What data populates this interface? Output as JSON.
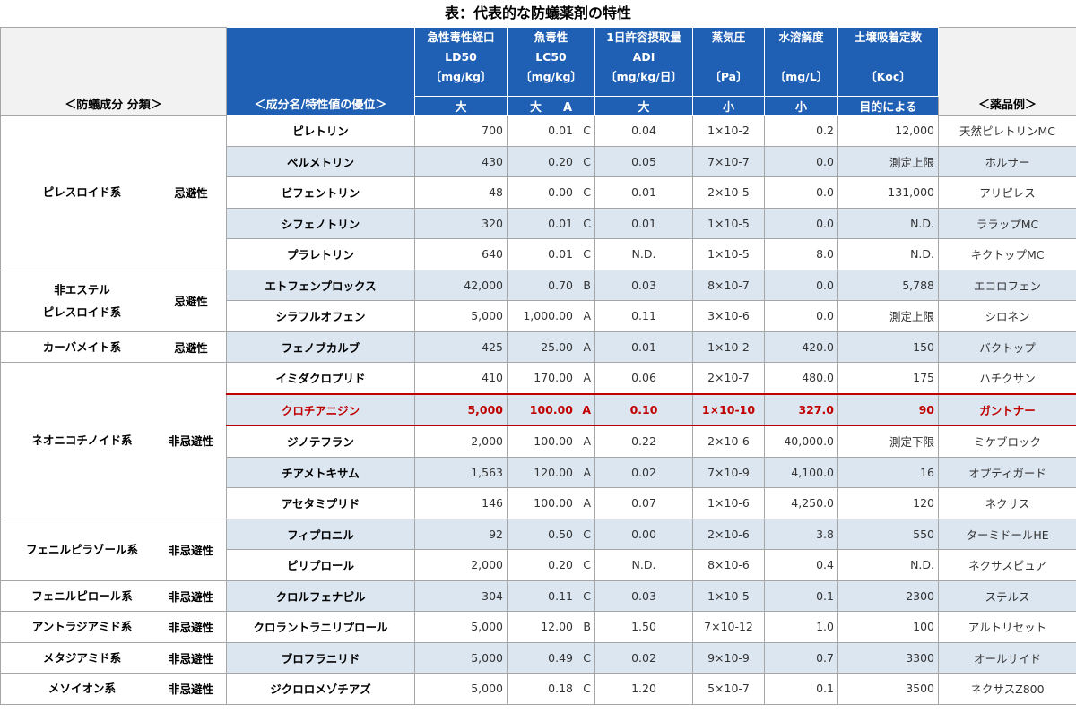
{
  "title": "表：代表的な防蟻薬剤の特性",
  "header": {
    "group_label": "＜防蟻成分 分類＞",
    "name_label": "＜成分名/特性値の優位＞",
    "example_label": "＜薬品例＞",
    "cols": [
      {
        "l1": "急性毒性経口",
        "l2": "LD50",
        "l3": "〔mg/kg〕",
        "pref": "大"
      },
      {
        "l1": "魚毒性",
        "l2": "LC50",
        "l3": "〔mg/kg〕",
        "pref": "大",
        "pref2": "A"
      },
      {
        "l1": "1日許容摂取量",
        "l2": "ADI",
        "l3": "〔mg/kg/日〕",
        "pref": "大"
      },
      {
        "l1": "蒸気圧",
        "l2": "",
        "l3": "〔Pa〕",
        "pref": "小"
      },
      {
        "l1": "水溶解度",
        "l2": "",
        "l3": "〔mg/L〕",
        "pref": "小"
      },
      {
        "l1": "土壌吸着定数",
        "l2": "",
        "l3": "〔Koc〕",
        "pref": "目的による"
      }
    ]
  },
  "groups": [
    {
      "name": "ピレスロイド系",
      "cls": "忌避性",
      "rows": [
        {
          "name": "ピレトリン",
          "ld50": "700",
          "lc50": "0.01",
          "lc50_rank": "C",
          "adi": "0.04",
          "vp": "1×10-2",
          "ws": "0.2",
          "koc": "12,000",
          "example": "天然ピレトリンMC"
        },
        {
          "name": "ペルメトリン",
          "ld50": "430",
          "lc50": "0.20",
          "lc50_rank": "C",
          "adi": "0.05",
          "vp": "7×10-7",
          "ws": "0.0",
          "koc": "測定上限",
          "example": "ホルサー"
        },
        {
          "name": "ビフェントリン",
          "ld50": "48",
          "lc50": "0.00",
          "lc50_rank": "C",
          "adi": "0.01",
          "vp": "2×10-5",
          "ws": "0.0",
          "koc": "131,000",
          "example": "アリピレス"
        },
        {
          "name": "シフェノトリン",
          "ld50": "320",
          "lc50": "0.01",
          "lc50_rank": "C",
          "adi": "0.01",
          "vp": "1×10-5",
          "ws": "0.0",
          "koc": "N.D.",
          "example": "ララップMC"
        },
        {
          "name": "プラレトリン",
          "ld50": "640",
          "lc50": "0.01",
          "lc50_rank": "C",
          "adi": "N.D.",
          "vp": "1×10-5",
          "ws": "8.0",
          "koc": "N.D.",
          "example": "キクトップMC"
        }
      ]
    },
    {
      "name": "非エステル\nピレスロイド系",
      "cls": "忌避性",
      "rows": [
        {
          "name": "エトフェンプロックス",
          "ld50": "42,000",
          "lc50": "0.70",
          "lc50_rank": "B",
          "adi": "0.03",
          "vp": "8×10-7",
          "ws": "0.0",
          "koc": "5,788",
          "example": "エコロフェン"
        },
        {
          "name": "シラフルオフェン",
          "ld50": "5,000",
          "lc50": "1,000.00",
          "lc50_rank": "A",
          "adi": "0.11",
          "vp": "3×10-6",
          "ws": "0.0",
          "koc": "測定上限",
          "example": "シロネン"
        }
      ]
    },
    {
      "name": "カーバメイト系",
      "cls": "忌避性",
      "rows": [
        {
          "name": "フェノブカルブ",
          "ld50": "425",
          "lc50": "25.00",
          "lc50_rank": "A",
          "adi": "0.01",
          "vp": "1×10-2",
          "ws": "420.0",
          "koc": "150",
          "example": "バクトップ"
        }
      ]
    },
    {
      "name": "ネオニコチノイド系",
      "cls": "非忌避性",
      "rows": [
        {
          "name": "イミダクロプリド",
          "ld50": "410",
          "lc50": "170.00",
          "lc50_rank": "A",
          "adi": "0.06",
          "vp": "2×10-7",
          "ws": "480.0",
          "koc": "175",
          "example": "ハチクサン"
        },
        {
          "name": "クロチアニジン",
          "ld50": "5,000",
          "lc50": "100.00",
          "lc50_rank": "A",
          "adi": "0.10",
          "vp": "1×10-10",
          "ws": "327.0",
          "koc": "90",
          "example": "ガントナー",
          "highlight": true
        },
        {
          "name": "ジノテフラン",
          "ld50": "2,000",
          "lc50": "100.00",
          "lc50_rank": "A",
          "adi": "0.22",
          "vp": "2×10-6",
          "ws": "40,000.0",
          "koc": "測定下限",
          "example": "ミケブロック"
        },
        {
          "name": "チアメトキサム",
          "ld50": "1,563",
          "lc50": "120.00",
          "lc50_rank": "A",
          "adi": "0.02",
          "vp": "7×10-9",
          "ws": "4,100.0",
          "koc": "16",
          "example": "オプティガード"
        },
        {
          "name": "アセタミプリド",
          "ld50": "146",
          "lc50": "100.00",
          "lc50_rank": "A",
          "adi": "0.07",
          "vp": "1×10-6",
          "ws": "4,250.0",
          "koc": "120",
          "example": "ネクサス"
        }
      ]
    },
    {
      "name": "フェニルピラゾール系",
      "cls": "非忌避性",
      "rows": [
        {
          "name": "フィプロニル",
          "ld50": "92",
          "lc50": "0.50",
          "lc50_rank": "C",
          "adi": "0.00",
          "vp": "2×10-6",
          "ws": "3.8",
          "koc": "550",
          "example": "ターミドールHE"
        },
        {
          "name": "ピリプロール",
          "ld50": "2,000",
          "lc50": "0.20",
          "lc50_rank": "C",
          "adi": "N.D.",
          "vp": "8×10-6",
          "ws": "0.4",
          "koc": "N.D.",
          "example": "ネクサスピュア"
        }
      ]
    },
    {
      "name": "フェニルピロール系",
      "cls": "非忌避性",
      "rows": [
        {
          "name": "クロルフェナピル",
          "ld50": "304",
          "lc50": "0.11",
          "lc50_rank": "C",
          "adi": "0.03",
          "vp": "1×10-5",
          "ws": "0.1",
          "koc": "2300",
          "example": "ステルス"
        }
      ]
    },
    {
      "name": "アントラジアミド系",
      "cls": "非忌避性",
      "rows": [
        {
          "name": "クロラントラニリプロール",
          "ld50": "5,000",
          "lc50": "12.00",
          "lc50_rank": "B",
          "adi": "1.50",
          "vp": "7×10-12",
          "ws": "1.0",
          "koc": "100",
          "example": "アルトリセット"
        }
      ]
    },
    {
      "name": "メタジアミド系",
      "cls": "非忌避性",
      "rows": [
        {
          "name": "ブロフラニリド",
          "ld50": "5,000",
          "lc50": "0.49",
          "lc50_rank": "C",
          "adi": "0.02",
          "vp": "9×10-9",
          "ws": "0.7",
          "koc": "3300",
          "example": "オールサイド"
        }
      ]
    },
    {
      "name": "メソイオン系",
      "cls": "非忌避性",
      "rows": [
        {
          "name": "ジクロロメゾチアズ",
          "ld50": "5,000",
          "lc50": "0.18",
          "lc50_rank": "C",
          "adi": "1.20",
          "vp": "5×10-7",
          "ws": "0.1",
          "koc": "3500",
          "example": "ネクサスZ800"
        }
      ]
    }
  ]
}
